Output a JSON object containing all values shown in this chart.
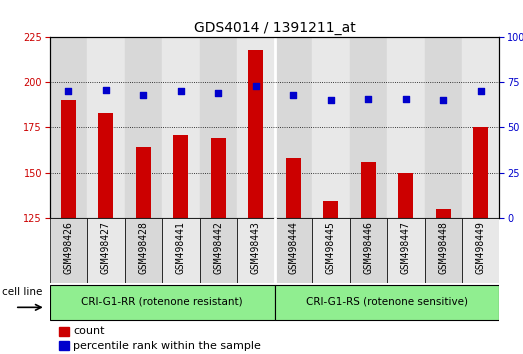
{
  "title": "GDS4014 / 1391211_at",
  "samples": [
    "GSM498426",
    "GSM498427",
    "GSM498428",
    "GSM498441",
    "GSM498442",
    "GSM498443",
    "GSM498444",
    "GSM498445",
    "GSM498446",
    "GSM498447",
    "GSM498448",
    "GSM498449"
  ],
  "counts": [
    190,
    183,
    164,
    171,
    169,
    218,
    158,
    134,
    156,
    150,
    130,
    175
  ],
  "percentiles": [
    70,
    71,
    68,
    70,
    69,
    73,
    68,
    65,
    66,
    66,
    65,
    70
  ],
  "group1_label": "CRI-G1-RR (rotenone resistant)",
  "group2_label": "CRI-G1-RS (rotenone sensitive)",
  "group1_count": 6,
  "group2_count": 6,
  "cell_line_label": "cell line",
  "bar_color": "#cc0000",
  "dot_color": "#0000cc",
  "left_ylim": [
    125,
    225
  ],
  "left_yticks": [
    125,
    150,
    175,
    200,
    225
  ],
  "right_ylim": [
    0,
    100
  ],
  "right_yticks": [
    0,
    25,
    50,
    75,
    100
  ],
  "col_bg_odd": "#d8d8d8",
  "col_bg_even": "#e8e8e8",
  "group_bg": "#90ee90",
  "title_fontsize": 10,
  "tick_fontsize": 7,
  "legend_fontsize": 8
}
